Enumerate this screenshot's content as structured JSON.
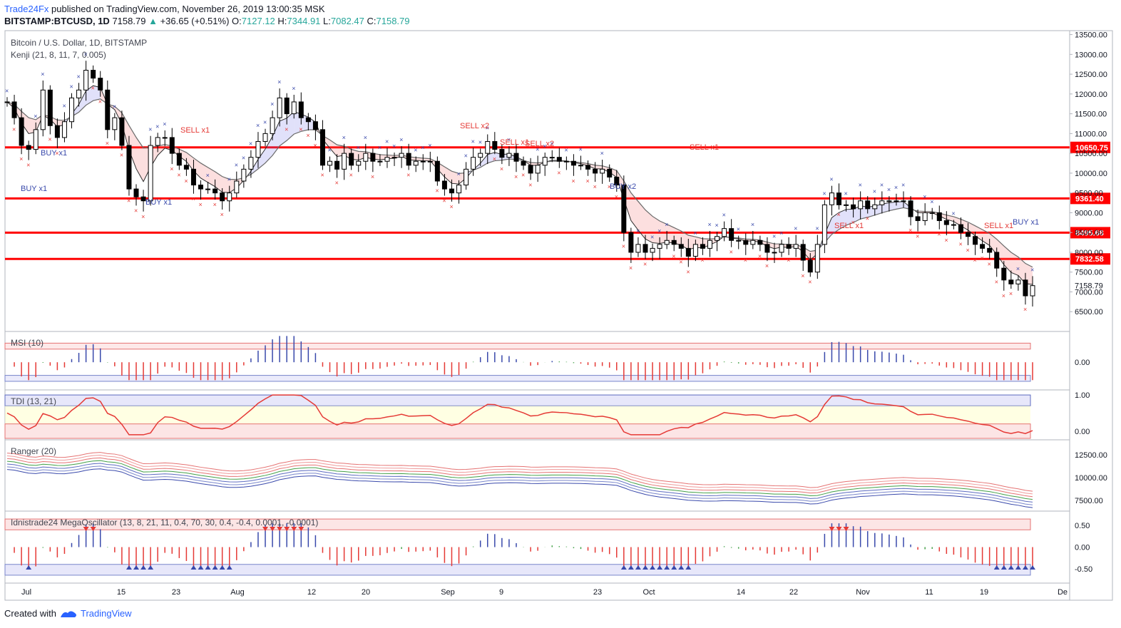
{
  "header": {
    "publisher": "Trade24Fx",
    "published_text": "published on TradingView.com, November 26, 2019 13:00:35 MSK",
    "symbol": "BITSTAMP:BTCUSD, 1D",
    "last": "7158.79",
    "change": "+36.65 (+0.51%)",
    "o_label": "O:",
    "o": "7127.12",
    "h_label": "H:",
    "h": "7344.91",
    "l_label": "L:",
    "l": "7082.47",
    "c_label": "C:",
    "c": "7158.79"
  },
  "footer": {
    "created_with": "Created with",
    "brand": "TradingView"
  },
  "colors": {
    "accent": "#2962ff",
    "level": "#ff0000",
    "up": "#26a69a"
  },
  "chart_data": {
    "type": "candlestick",
    "title": "Bitcoin / U.S. Dollar, 1D, BITSTAMP",
    "indicator": "Kenji (21, 8, 11, 7, 0.005)",
    "ylim": [
      6000,
      13600
    ],
    "yticks": [
      "13500.00",
      "13000.00",
      "12500.00",
      "12000.00",
      "11500.00",
      "11000.00",
      "10500.00",
      "10000.00",
      "9500.00",
      "9000.00",
      "8500.00",
      "8000.00",
      "7500.00",
      "7000.00",
      "6500.00"
    ],
    "last_price": "7158.79",
    "levels": [
      {
        "value": 10650.75,
        "label": "10650.75"
      },
      {
        "value": 9361.4,
        "label": "9361.40"
      },
      {
        "value": 8495.68,
        "label": "8495.68"
      },
      {
        "value": 7832.58,
        "label": "7832.58"
      }
    ],
    "xticks": [
      "Jul",
      "15",
      "23",
      "Aug",
      "12",
      "20",
      "Sep",
      "9",
      "23",
      "Oct",
      "14",
      "22",
      "Nov",
      "11",
      "19",
      "De"
    ],
    "closes": [
      11800,
      11400,
      10700,
      10600,
      11100,
      12100,
      11200,
      10900,
      11300,
      11900,
      12100,
      12600,
      12400,
      12100,
      11100,
      11400,
      10700,
      9600,
      9400,
      9300,
      10700,
      10900,
      10900,
      10500,
      10200,
      10100,
      9700,
      9600,
      9600,
      9500,
      9300,
      9500,
      9800,
      10100,
      10400,
      10800,
      11000,
      11400,
      11900,
      11500,
      11800,
      11400,
      11300,
      11100,
      10200,
      10300,
      10100,
      10500,
      10200,
      10300,
      10500,
      10300,
      10300,
      10400,
      10400,
      10500,
      10200,
      10300,
      10300,
      10300,
      9800,
      9600,
      9500,
      9700,
      10100,
      10400,
      10500,
      10800,
      10600,
      10400,
      10500,
      10300,
      10200,
      10000,
      10200,
      10400,
      10400,
      10300,
      10300,
      10200,
      10200,
      10100,
      10000,
      10100,
      9900,
      9700,
      8500,
      8000,
      8200,
      8000,
      8100,
      8200,
      8300,
      8200,
      8100,
      7900,
      8200,
      8100,
      8300,
      8400,
      8600,
      8300,
      8300,
      8200,
      8300,
      8200,
      8000,
      8000,
      8200,
      8100,
      8200,
      7800,
      7500,
      8200,
      9200,
      9500,
      9200,
      9200,
      9100,
      9300,
      9100,
      9200,
      9300,
      9300,
      9300,
      9300,
      8900,
      8800,
      9000,
      9000,
      8800,
      8700,
      8700,
      8500,
      8400,
      8200,
      8100,
      8000,
      7600,
      7300,
      7200,
      7300,
      6900,
      7158
    ],
    "levels_annotations": [
      {
        "text": "BUY x1"
      },
      {
        "text": "BUY x1"
      },
      {
        "text": "BUY x1"
      },
      {
        "text": "SELL x1"
      },
      {
        "text": "SELL x2"
      },
      {
        "text": "SELL x1"
      },
      {
        "text": "SELL x2"
      },
      {
        "text": "BUY x2"
      },
      {
        "text": "SELL x1"
      },
      {
        "text": "SELL x1"
      },
      {
        "text": "SELL x1"
      },
      {
        "text": "BUY x1"
      }
    ],
    "panels": [
      {
        "name": "MSI (10)",
        "yticks": [
          "0.00"
        ]
      },
      {
        "name": "TDI (13, 21)",
        "yticks": [
          "1.00",
          "0.00"
        ]
      },
      {
        "name": "Ranger (20)",
        "yticks": [
          "12500.00",
          "10000.00",
          "7500.00"
        ]
      },
      {
        "name": "Idnistrade24 MegaOscillator (13, 8, 21, 11, 0.4, 70, 30, 0.4, -0.4, 0.0001, -0.0001)",
        "yticks": [
          "0.50",
          "0.00",
          "-0.50"
        ]
      }
    ]
  }
}
